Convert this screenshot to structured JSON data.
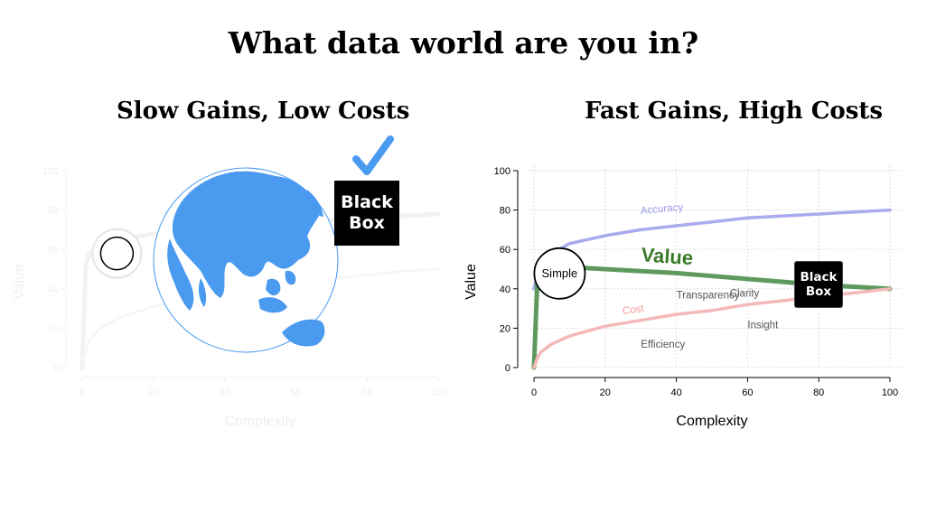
{
  "title": "What data world are you in?",
  "panels": {
    "left": {
      "title": "Slow Gains, Low Costs",
      "black_box_label": "Black Box"
    },
    "right": {
      "title": "Fast Gains, High Costs",
      "black_box_label": "Black Box"
    }
  },
  "icons": {
    "globe": "globe-icon",
    "check": "checkmark-icon"
  },
  "colors": {
    "accuracy": "#aaaaee",
    "value": "#5e9a5e",
    "value_label": "#3a7a2a",
    "cost": "#f4b8b8",
    "globe": "#4a9af0",
    "check": "#4a9af0"
  },
  "chart_data": [
    {
      "type": "line",
      "panel": "left",
      "faded": true,
      "xlabel": "Complexity",
      "ylabel": "Value",
      "xlim": [
        0,
        100
      ],
      "ylim": [
        0,
        100
      ],
      "xticks": [
        0,
        20,
        40,
        60,
        80,
        100
      ],
      "yticks": [
        0,
        20,
        40,
        60,
        80,
        100
      ],
      "grid": false,
      "series": [
        {
          "name": "Value",
          "x": [
            0,
            1,
            2,
            5,
            10,
            20,
            30,
            40,
            50,
            60,
            70,
            80,
            90,
            100
          ],
          "y": [
            0,
            52,
            58,
            62,
            65,
            68,
            70,
            72,
            73,
            74,
            75,
            76,
            77,
            78
          ]
        },
        {
          "name": "",
          "x": [
            0,
            2,
            5,
            10,
            20,
            30,
            40,
            50,
            60,
            70,
            80,
            90,
            100
          ],
          "y": [
            2,
            14,
            20,
            25,
            31,
            35,
            38,
            41,
            43,
            45,
            47,
            49,
            50
          ]
        }
      ],
      "annotations": [
        {
          "text": "V",
          "x": 23,
          "y": 74
        }
      ],
      "markers": [
        {
          "label": "",
          "x": 10,
          "y": 63
        }
      ]
    },
    {
      "type": "line",
      "panel": "right",
      "xlabel": "Complexity",
      "ylabel": "Value",
      "xlim": [
        0,
        100
      ],
      "ylim": [
        0,
        100
      ],
      "xticks": [
        0,
        20,
        40,
        60,
        80,
        100
      ],
      "yticks": [
        0,
        20,
        40,
        60,
        80,
        100
      ],
      "grid": true,
      "series": [
        {
          "name": "Accuracy",
          "x": [
            0,
            1,
            2,
            5,
            10,
            20,
            30,
            40,
            50,
            60,
            70,
            80,
            90,
            100
          ],
          "y": [
            40,
            48,
            52,
            58,
            63,
            67,
            70,
            72,
            74,
            76,
            77,
            78,
            79,
            80
          ]
        },
        {
          "name": "Value",
          "x": [
            0,
            1,
            2,
            10,
            20,
            40,
            60,
            80,
            100
          ],
          "y": [
            0,
            46,
            49,
            51,
            50,
            48,
            45,
            42,
            40
          ]
        },
        {
          "name": "Cost",
          "x": [
            0,
            1,
            2,
            5,
            10,
            20,
            30,
            40,
            50,
            60,
            70,
            80,
            90,
            100
          ],
          "y": [
            0,
            5,
            8,
            12,
            16,
            21,
            24,
            27,
            29,
            32,
            34,
            36,
            38,
            40
          ]
        }
      ],
      "annotations": [
        {
          "text": "Accuracy",
          "x": 30,
          "y": 78,
          "series": "Accuracy",
          "rotate": -5
        },
        {
          "text": "Value",
          "x": 30,
          "y": 54,
          "series": "Value",
          "rotate": 4
        },
        {
          "text": "Cost",
          "x": 25,
          "y": 27,
          "series": "Cost",
          "rotate": -8
        },
        {
          "text": "Transparency",
          "x": 40,
          "y": 35
        },
        {
          "text": "Clarity",
          "x": 55,
          "y": 36
        },
        {
          "text": "Insight",
          "x": 60,
          "y": 20
        },
        {
          "text": "Efficiency",
          "x": 30,
          "y": 10
        }
      ],
      "markers": [
        {
          "label": "Simple",
          "x": 10,
          "y": 51
        }
      ]
    }
  ]
}
